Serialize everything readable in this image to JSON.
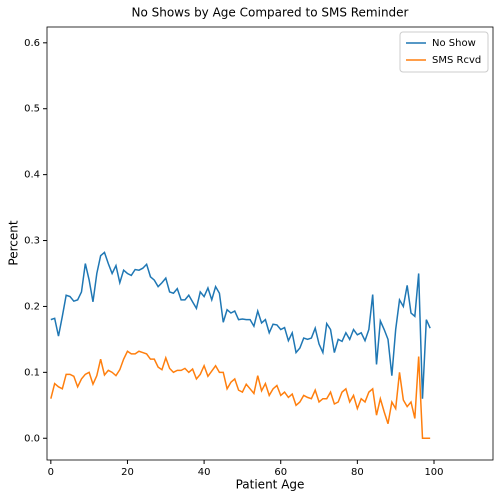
{
  "chart_data": {
    "type": "line",
    "title": "No Shows by Age Compared to SMS Reminder",
    "xlabel": "Patient Age",
    "ylabel": "Percent",
    "x": [
      0,
      1,
      2,
      3,
      4,
      5,
      6,
      7,
      8,
      9,
      10,
      11,
      12,
      13,
      14,
      15,
      16,
      17,
      18,
      19,
      20,
      21,
      22,
      23,
      24,
      25,
      26,
      27,
      28,
      29,
      30,
      31,
      32,
      33,
      34,
      35,
      36,
      37,
      38,
      39,
      40,
      41,
      42,
      43,
      44,
      45,
      46,
      47,
      48,
      49,
      50,
      51,
      52,
      53,
      54,
      55,
      56,
      57,
      58,
      59,
      60,
      61,
      62,
      63,
      64,
      65,
      66,
      67,
      68,
      69,
      70,
      71,
      72,
      73,
      74,
      75,
      76,
      77,
      78,
      79,
      80,
      81,
      82,
      83,
      84,
      85,
      86,
      87,
      88,
      89,
      90,
      91,
      92,
      93,
      94,
      95,
      96,
      97,
      98,
      99
    ],
    "series": [
      {
        "name": "No Show",
        "color": "#1f77b4",
        "values": [
          0.18,
          0.182,
          0.155,
          0.185,
          0.217,
          0.215,
          0.208,
          0.21,
          0.222,
          0.265,
          0.24,
          0.207,
          0.25,
          0.277,
          0.282,
          0.265,
          0.25,
          0.262,
          0.236,
          0.255,
          0.25,
          0.247,
          0.256,
          0.255,
          0.258,
          0.264,
          0.245,
          0.24,
          0.23,
          0.236,
          0.243,
          0.222,
          0.22,
          0.227,
          0.21,
          0.21,
          0.217,
          0.207,
          0.197,
          0.222,
          0.215,
          0.228,
          0.21,
          0.23,
          0.22,
          0.176,
          0.195,
          0.19,
          0.193,
          0.18,
          0.181,
          0.18,
          0.18,
          0.17,
          0.193,
          0.175,
          0.18,
          0.16,
          0.173,
          0.172,
          0.165,
          0.168,
          0.148,
          0.16,
          0.13,
          0.137,
          0.152,
          0.15,
          0.152,
          0.167,
          0.143,
          0.13,
          0.174,
          0.165,
          0.13,
          0.15,
          0.147,
          0.16,
          0.15,
          0.165,
          0.157,
          0.16,
          0.148,
          0.165,
          0.218,
          0.112,
          0.178,
          0.165,
          0.15,
          0.095,
          0.165,
          0.21,
          0.2,
          0.232,
          0.19,
          0.185,
          0.25,
          0.06,
          0.18,
          0.167
        ]
      },
      {
        "name": "SMS Rcvd",
        "color": "#ff7f0e",
        "values": [
          0.06,
          0.083,
          0.078,
          0.075,
          0.097,
          0.097,
          0.094,
          0.078,
          0.09,
          0.097,
          0.1,
          0.082,
          0.095,
          0.12,
          0.096,
          0.103,
          0.1,
          0.095,
          0.104,
          0.12,
          0.132,
          0.128,
          0.128,
          0.132,
          0.13,
          0.128,
          0.12,
          0.12,
          0.108,
          0.104,
          0.122,
          0.106,
          0.1,
          0.103,
          0.103,
          0.106,
          0.1,
          0.105,
          0.09,
          0.097,
          0.11,
          0.094,
          0.102,
          0.11,
          0.1,
          0.1,
          0.075,
          0.085,
          0.09,
          0.073,
          0.07,
          0.082,
          0.075,
          0.068,
          0.095,
          0.072,
          0.083,
          0.065,
          0.075,
          0.08,
          0.065,
          0.07,
          0.062,
          0.067,
          0.05,
          0.055,
          0.065,
          0.062,
          0.06,
          0.073,
          0.055,
          0.06,
          0.06,
          0.07,
          0.052,
          0.055,
          0.07,
          0.075,
          0.055,
          0.065,
          0.045,
          0.06,
          0.055,
          0.07,
          0.075,
          0.035,
          0.06,
          0.04,
          0.022,
          0.055,
          0.045,
          0.1,
          0.058,
          0.048,
          0.055,
          0.03,
          0.124,
          0,
          0,
          0
        ]
      }
    ],
    "xlim": [
      -1,
      115.4
    ],
    "xticks": [
      0,
      20,
      40,
      60,
      80,
      100
    ],
    "ylim": [
      -0.033,
      0.624
    ],
    "yticks": [
      {
        "value": 0,
        "label": "0.0"
      },
      0.1,
      0.2,
      0.3,
      0.4,
      0.5,
      0.6
    ],
    "legend": "upper right"
  }
}
